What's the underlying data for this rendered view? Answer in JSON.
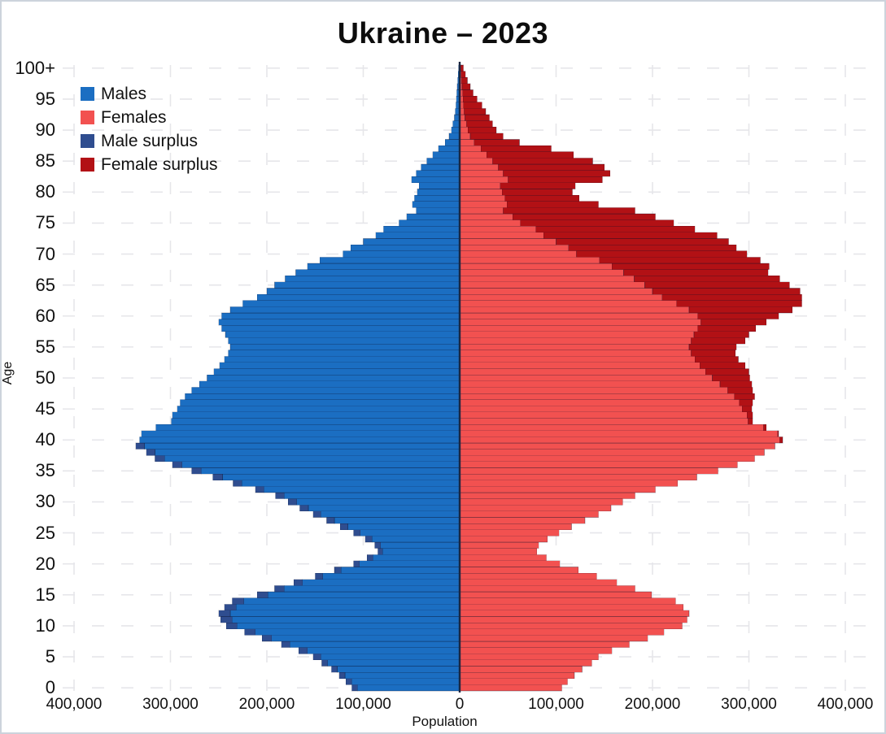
{
  "header": {
    "title": "Ukraine – 2023"
  },
  "legend": {
    "items": [
      {
        "label": "Males",
        "color": "#1b6ec2"
      },
      {
        "label": "Females",
        "color": "#f25150"
      },
      {
        "label": "Male surplus",
        "color": "#2f4d8f"
      },
      {
        "label": "Female surplus",
        "color": "#b21115"
      }
    ]
  },
  "axes": {
    "x_label": "Population",
    "y_label": "Age",
    "x_ticks": [
      "400,000",
      "300,000",
      "200,000",
      "100,000",
      "0",
      "100,000",
      "200,000",
      "300,000",
      "400,000"
    ],
    "y_ticks": [
      "100+",
      "95",
      "90",
      "85",
      "80",
      "75",
      "70",
      "65",
      "60",
      "55",
      "50",
      "45",
      "40",
      "35",
      "30",
      "25",
      "20",
      "15",
      "10",
      "5",
      "0"
    ]
  },
  "chart_data": {
    "type": "bar",
    "subtype": "population-pyramid",
    "title": "Ukraine – 2023",
    "xlabel": "Population",
    "ylabel": "Age",
    "grid": true,
    "legend_position": "top-left",
    "x_axis_range_persons": [
      -400000,
      400000
    ],
    "age_min": 0,
    "age_max": 100,
    "age_step": 1,
    "top_age_label": "100+",
    "surplus_colors": {
      "male": "#2f4d8f",
      "female": "#b21115"
    },
    "series": [
      {
        "name": "Males",
        "color": "#1b6ec2",
        "values": [
          112000,
          118000,
          125000,
          133000,
          143000,
          152000,
          167000,
          185000,
          205000,
          223000,
          242000,
          248000,
          250000,
          244000,
          236000,
          210000,
          192000,
          172000,
          150000,
          130000,
          110000,
          96000,
          85000,
          88000,
          98000,
          110000,
          124000,
          138000,
          152000,
          166000,
          178000,
          191000,
          212000,
          235000,
          256000,
          278000,
          298000,
          316000,
          325000,
          336000,
          332000,
          330000,
          315000,
          299000,
          298000,
          293000,
          290000,
          285000,
          278000,
          270000,
          262000,
          255000,
          249000,
          244000,
          240000,
          238000,
          240000,
          243000,
          247000,
          250000,
          247000,
          238000,
          225000,
          210000,
          200000,
          192000,
          181000,
          170000,
          158000,
          145000,
          121000,
          113000,
          100000,
          87000,
          79000,
          63000,
          55000,
          45000,
          49000,
          47000,
          44000,
          42000,
          50000,
          45000,
          40000,
          34000,
          28000,
          22000,
          15000,
          11000,
          8500,
          7000,
          5500,
          4500,
          4000,
          3500,
          3000,
          2500,
          2000,
          1500,
          1200
        ]
      },
      {
        "name": "Females",
        "color": "#f25150",
        "values": [
          106000,
          112000,
          119000,
          127000,
          137000,
          144000,
          158000,
          176000,
          195000,
          212000,
          231000,
          236000,
          238000,
          232000,
          224000,
          199000,
          182000,
          163000,
          142000,
          123000,
          104000,
          90000,
          80000,
          82000,
          91000,
          103000,
          116000,
          130000,
          144000,
          157000,
          169000,
          182000,
          203000,
          226000,
          246000,
          268000,
          288000,
          306000,
          316000,
          327000,
          335000,
          331000,
          318000,
          304000,
          304000,
          303000,
          304000,
          306000,
          304000,
          303000,
          301000,
          300000,
          296000,
          289000,
          286000,
          287000,
          296000,
          300000,
          307000,
          318000,
          331000,
          345000,
          355000,
          355000,
          353000,
          342000,
          332000,
          320000,
          321000,
          312000,
          298000,
          287000,
          279000,
          267000,
          244000,
          222000,
          203000,
          182000,
          144000,
          124000,
          117000,
          120000,
          148000,
          156000,
          150000,
          138000,
          118000,
          95000,
          62000,
          45000,
          38000,
          34000,
          31000,
          27000,
          23000,
          18000,
          14000,
          11000,
          8000,
          6000,
          4000
        ]
      }
    ]
  }
}
